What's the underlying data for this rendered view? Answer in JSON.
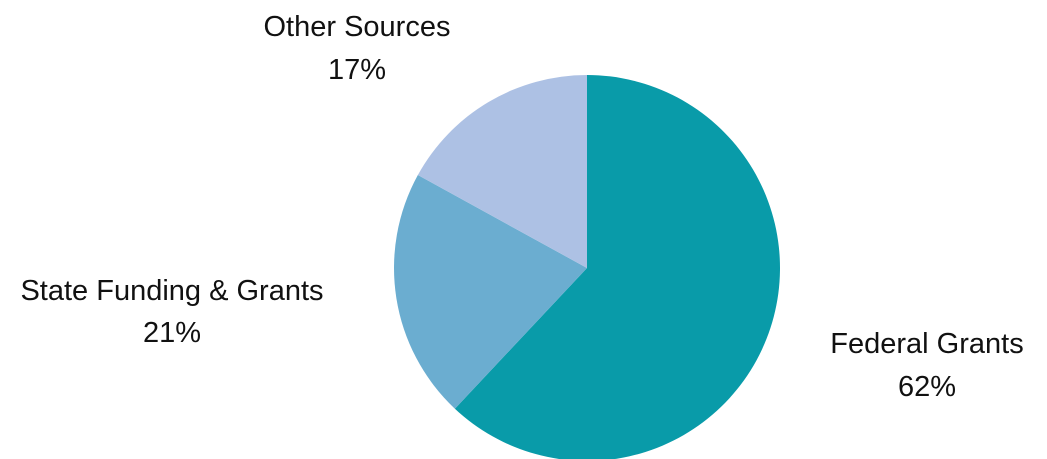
{
  "chart_data": {
    "type": "pie",
    "slices": [
      {
        "label": "Federal Grants",
        "value": 62,
        "value_label": "62%",
        "color": "#099BA9"
      },
      {
        "label": "State Funding & Grants",
        "value": 21,
        "value_label": "21%",
        "color": "#6BADD0"
      },
      {
        "label": "Other Sources",
        "value": 17,
        "value_label": "17%",
        "color": "#ADC1E4"
      }
    ],
    "start_angle": "12 o'clock",
    "direction": "clockwise",
    "legend": "none",
    "labels": "outside slices"
  }
}
